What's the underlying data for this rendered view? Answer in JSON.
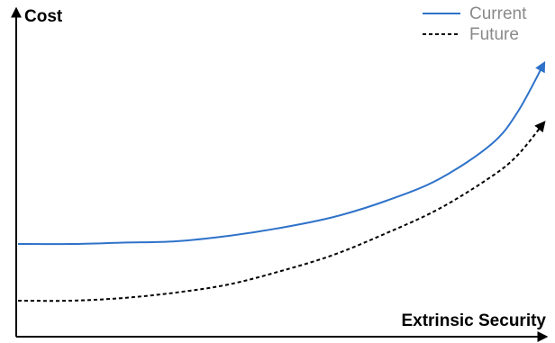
{
  "chart_data": {
    "type": "line",
    "ylabel": "Cost",
    "xlabel": "Extrinsic Security",
    "grid": false,
    "legend_position": "top-right",
    "series": [
      {
        "name": "Current",
        "color": "#2f72c9",
        "style": "solid",
        "x": [
          0,
          0.1,
          0.2,
          0.3,
          0.4,
          0.5,
          0.6,
          0.7,
          0.8,
          0.9,
          0.95,
          1.0
        ],
        "y": [
          0.33,
          0.33,
          0.335,
          0.34,
          0.36,
          0.39,
          0.43,
          0.49,
          0.57,
          0.7,
          0.82,
          1.0
        ]
      },
      {
        "name": "Future",
        "color": "#000000",
        "style": "dashed",
        "x": [
          0,
          0.1,
          0.2,
          0.3,
          0.4,
          0.5,
          0.6,
          0.7,
          0.8,
          0.9,
          0.95,
          1.0
        ],
        "y": [
          0.12,
          0.12,
          0.13,
          0.15,
          0.18,
          0.23,
          0.29,
          0.37,
          0.46,
          0.58,
          0.66,
          0.78
        ]
      }
    ]
  }
}
